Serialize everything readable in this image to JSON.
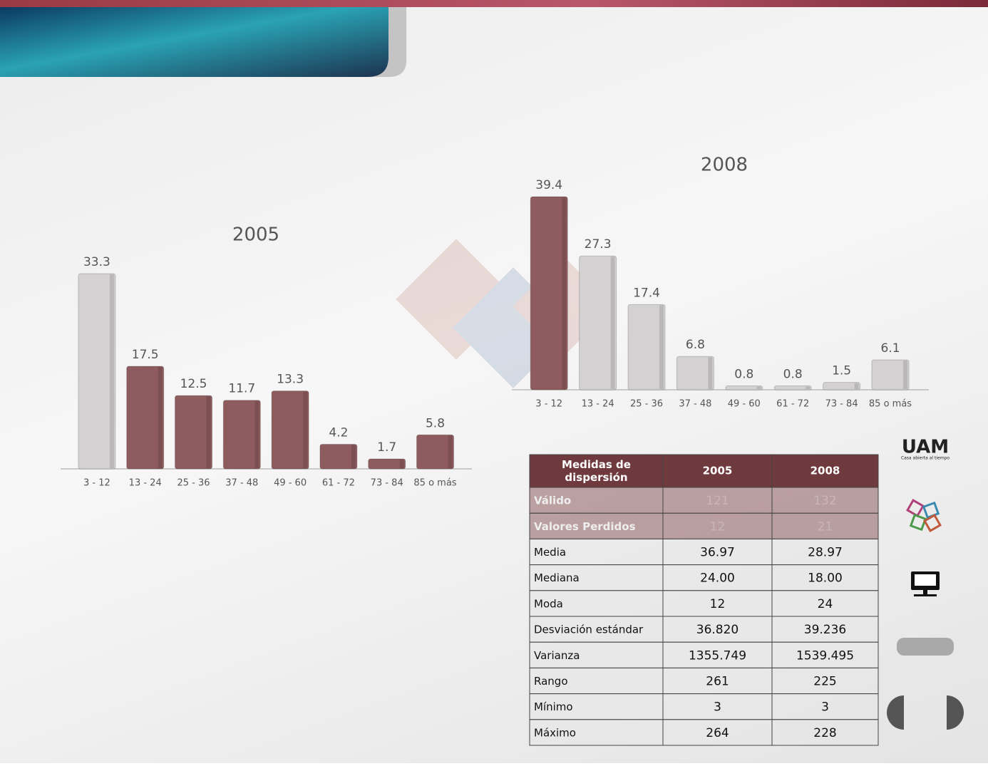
{
  "chart_data": [
    {
      "type": "bar",
      "title": "2005",
      "categories": [
        "3 - 12",
        "13 - 24",
        "25 - 36",
        "37 - 48",
        "49 - 60",
        "61 - 72",
        "73 - 84",
        "85 o más"
      ],
      "values": [
        33.3,
        17.5,
        12.5,
        11.7,
        13.3,
        4.2,
        1.7,
        5.8
      ],
      "colors": [
        "#d3d1d1",
        "#8e5c5e",
        "#8e5c5e",
        "#8e5c5e",
        "#8e5c5e",
        "#8e5c5e",
        "#8e5c5e",
        "#8e5c5e"
      ]
    },
    {
      "type": "bar",
      "title": "2008",
      "categories": [
        "3 - 12",
        "13 - 24",
        "25 - 36",
        "37 - 48",
        "49 - 60",
        "61 - 72",
        "73 - 84",
        "85 o más"
      ],
      "values": [
        39.4,
        27.3,
        17.4,
        6.8,
        0.8,
        0.8,
        1.5,
        6.1
      ],
      "colors": [
        "#8e5c5e",
        "#d3d1d1",
        "#d3d1d1",
        "#d3d1d1",
        "#d3d1d1",
        "#d3d1d1",
        "#d3d1d1",
        "#d3d1d1"
      ]
    }
  ],
  "table": {
    "header": [
      "Medidas de dispersión",
      "2005",
      "2008"
    ],
    "rows": [
      [
        "Válido",
        "121",
        "132"
      ],
      [
        "Valores Perdidos",
        "12",
        "21"
      ],
      [
        "Media",
        "36.97",
        "28.97"
      ],
      [
        "Mediana",
        "24.00",
        "18.00"
      ],
      [
        "Moda",
        "12",
        "24"
      ],
      [
        "Desviación estándar",
        "36.820",
        "39.236"
      ],
      [
        "Varianza",
        "1355.749",
        "1539.495"
      ],
      [
        "Rango",
        "261",
        "225"
      ],
      [
        "Mínimo",
        "3",
        "3"
      ],
      [
        "Máximo",
        "264",
        "228"
      ]
    ]
  },
  "logo": {
    "tagline": "Casa abierta al tiempo"
  }
}
